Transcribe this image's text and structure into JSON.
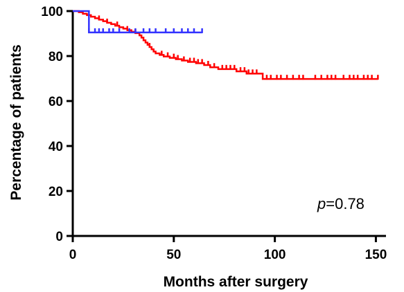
{
  "chart_data": {
    "type": "line",
    "subtype": "kaplan-meier",
    "title": "",
    "xlabel": "Months after surgery",
    "ylabel": "Percentage of patients",
    "xlim": [
      0,
      155
    ],
    "ylim": [
      0,
      100
    ],
    "xticks": [
      0,
      50,
      100,
      150
    ],
    "yticks": [
      0,
      20,
      40,
      60,
      80,
      100
    ],
    "xtick_labels": [
      "0",
      "50",
      "100",
      "150"
    ],
    "ytick_labels": [
      "0",
      "20",
      "40",
      "60",
      "80",
      "100"
    ],
    "grid": false,
    "legend": "none",
    "annotation": {
      "prefix": "p",
      "value": "=0.78"
    },
    "series": [
      {
        "color": "#ff0000",
        "step": [
          [
            0,
            100
          ],
          [
            3,
            99.5
          ],
          [
            5,
            98.8
          ],
          [
            7,
            98.2
          ],
          [
            9,
            97.5
          ],
          [
            11,
            96.8
          ],
          [
            13,
            96.2
          ],
          [
            15,
            95.5
          ],
          [
            17,
            94.8
          ],
          [
            19,
            94.2
          ],
          [
            21,
            93.5
          ],
          [
            23,
            92.8
          ],
          [
            25,
            92.2
          ],
          [
            27,
            91.5
          ],
          [
            29,
            90.8
          ],
          [
            31,
            90.2
          ],
          [
            33,
            89.2
          ],
          [
            34,
            88.2
          ],
          [
            35,
            87.0
          ],
          [
            36,
            86.0
          ],
          [
            37,
            85.0
          ],
          [
            38,
            84.0
          ],
          [
            39,
            83.0
          ],
          [
            40,
            82.0
          ],
          [
            41,
            81.2
          ],
          [
            43,
            80.5
          ],
          [
            45,
            79.8
          ],
          [
            48,
            79.2
          ],
          [
            51,
            78.6
          ],
          [
            54,
            78.0
          ],
          [
            57,
            77.4
          ],
          [
            61,
            76.8
          ],
          [
            65,
            76.0
          ],
          [
            68,
            75.0
          ],
          [
            72,
            74.2
          ],
          [
            81,
            73.2
          ],
          [
            86,
            72.2
          ],
          [
            94,
            69.8
          ]
        ],
        "end": 151,
        "censored": [
          13,
          17,
          22,
          27,
          31,
          38,
          44,
          47,
          50,
          52,
          55,
          58,
          60,
          62,
          64,
          67,
          70,
          74,
          76,
          78,
          80,
          83,
          85,
          87,
          89,
          91,
          96,
          98,
          101,
          103,
          106,
          109,
          112,
          114,
          120,
          123,
          126,
          128,
          130,
          134,
          137,
          139,
          141,
          144,
          146,
          148,
          151
        ]
      },
      {
        "color": "#3333ff",
        "step": [
          [
            0,
            100
          ],
          [
            8,
            90.5
          ]
        ],
        "end": 64,
        "censored": [
          8,
          11,
          13,
          15,
          18,
          20,
          23,
          28,
          31,
          35,
          38,
          41,
          46,
          50,
          54,
          57,
          60,
          64
        ]
      }
    ]
  }
}
